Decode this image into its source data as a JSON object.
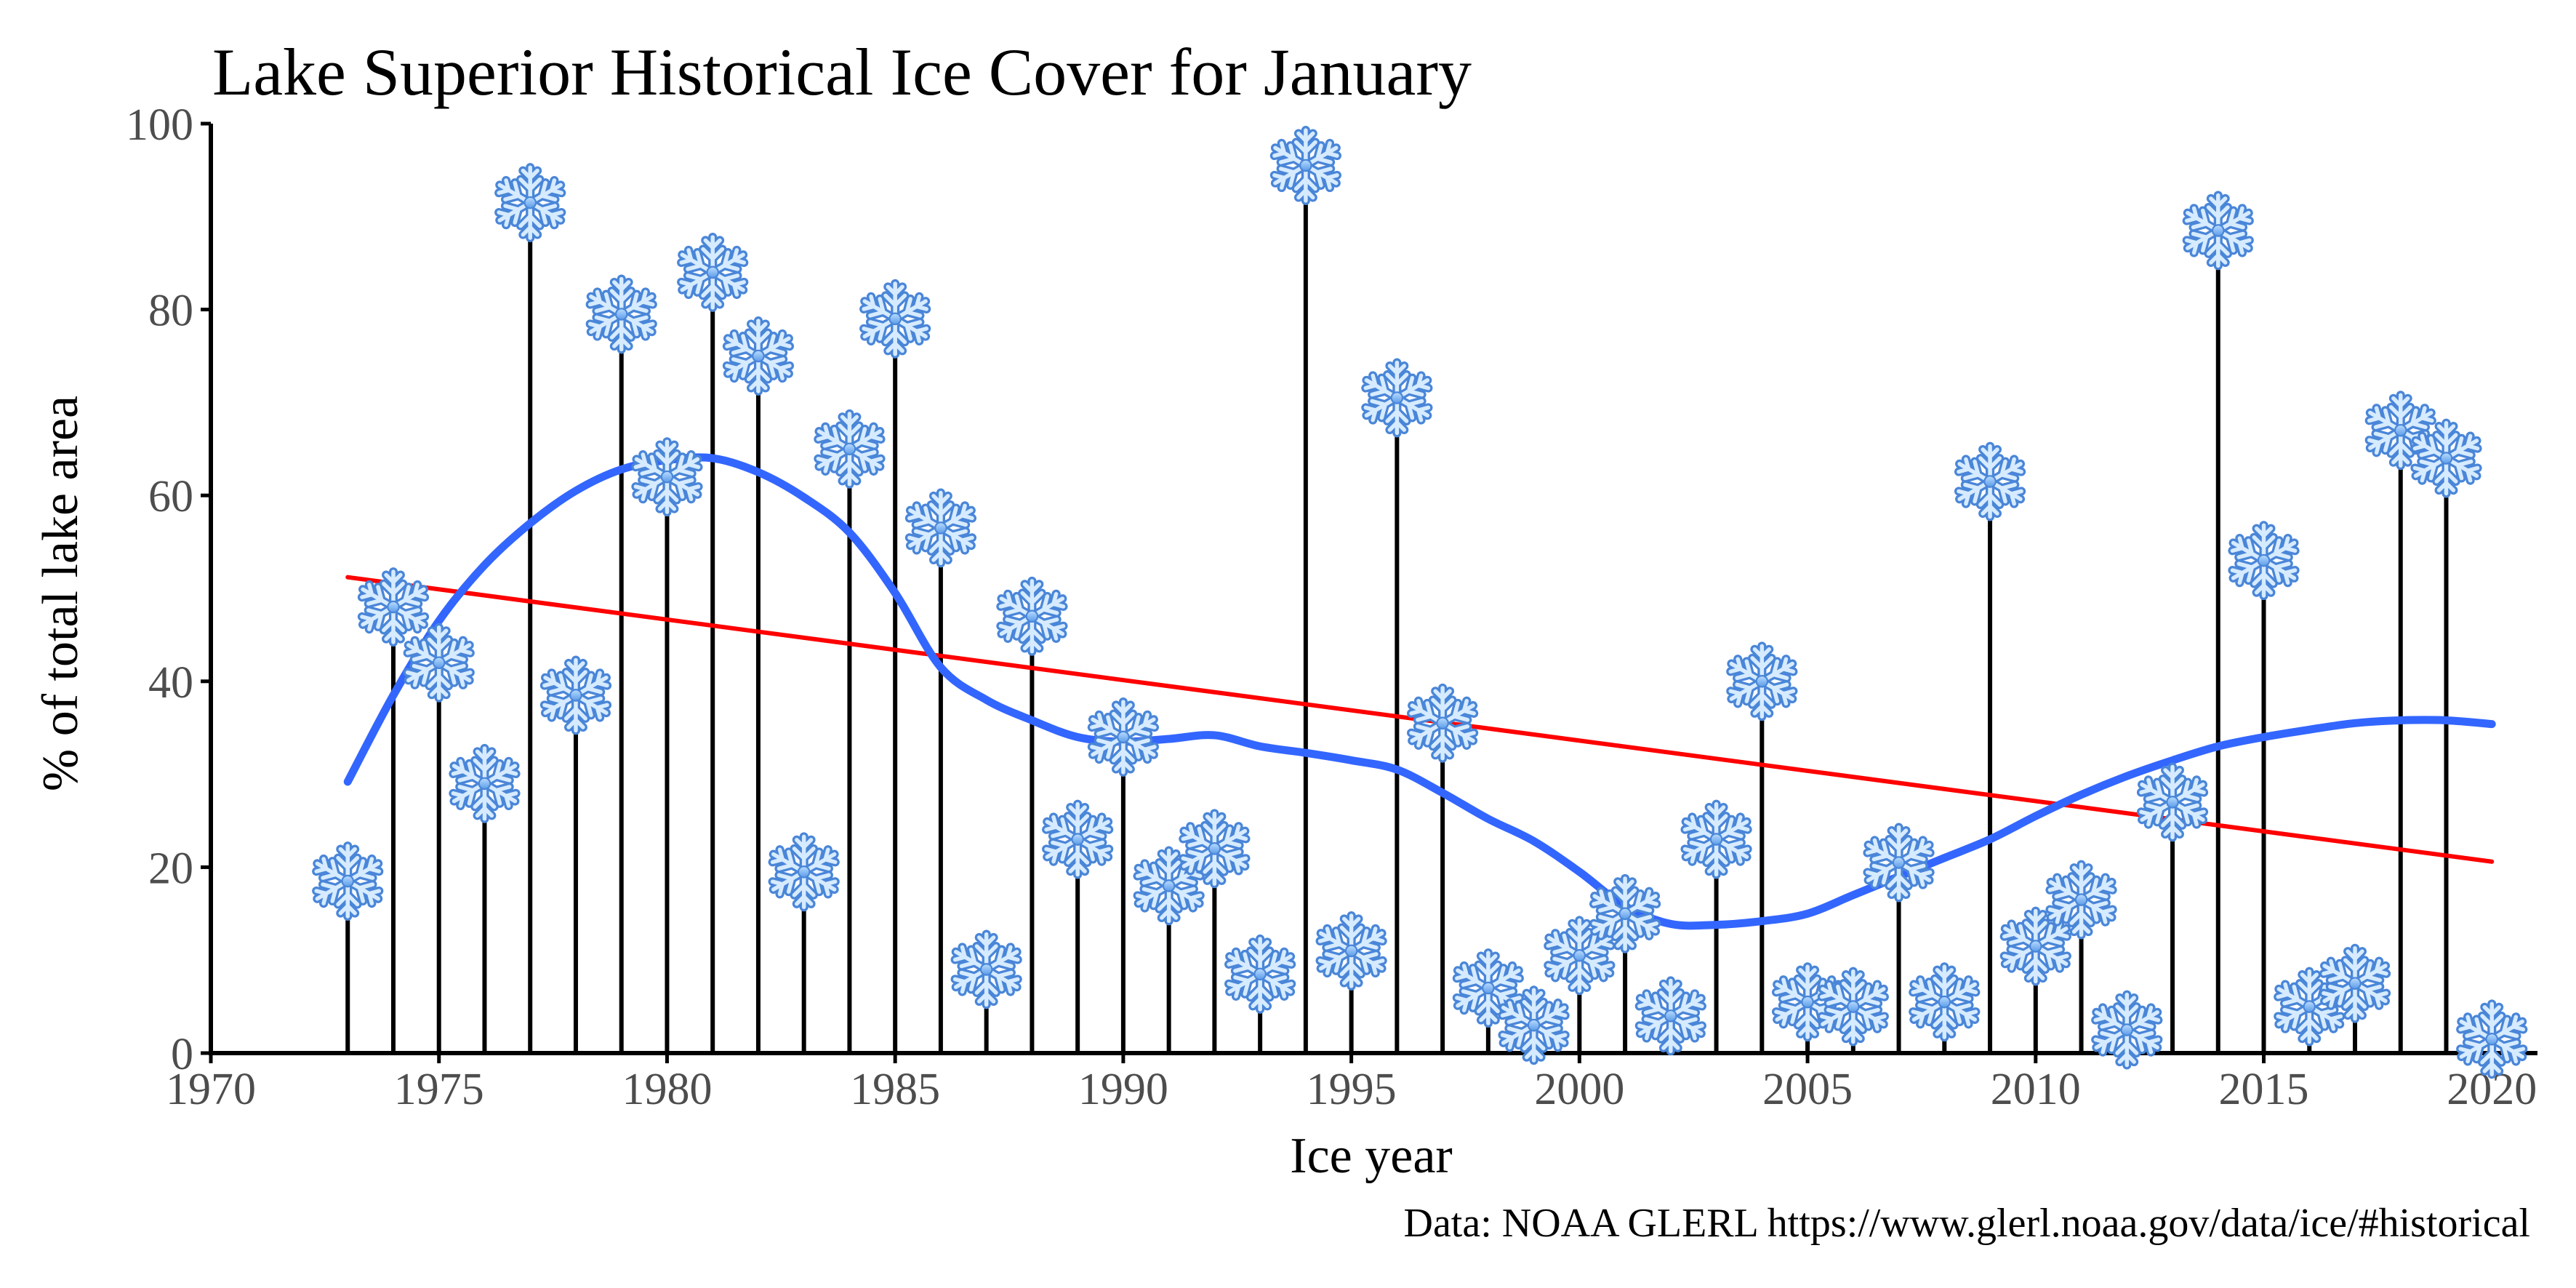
{
  "chart_data": {
    "type": "bar",
    "title": "Lake Superior Historical Ice Cover for January",
    "xlabel": "Ice year",
    "ylabel": "% of total lake area",
    "caption": "Data: NOAA GLERL https://www.glerl.noaa.gov/data/ice/#historical",
    "xlim": [
      1970,
      2021
    ],
    "ylim": [
      0,
      100
    ],
    "x_ticks": [
      1970,
      1975,
      1980,
      1985,
      1990,
      1995,
      2000,
      2005,
      2010,
      2015,
      2020
    ],
    "y_ticks": [
      0,
      20,
      40,
      60,
      80,
      100
    ],
    "x_tick_labels": [
      "1970",
      "1975",
      "1980",
      "1985",
      "1990",
      "1995",
      "2000",
      "2005",
      "2010",
      "2015",
      "2020"
    ],
    "y_tick_labels": [
      "0",
      "20",
      "40",
      "60",
      "80",
      "100"
    ],
    "marker_icon": "snowflake-icon",
    "grid": false,
    "series": [
      {
        "type": "lollipop",
        "color": "#000000",
        "x": [
          1973,
          1974,
          1975,
          1976,
          1977,
          1978,
          1979,
          1980,
          1981,
          1982,
          1983,
          1984,
          1985,
          1986,
          1987,
          1988,
          1989,
          1990,
          1991,
          1992,
          1993,
          1994,
          1995,
          1996,
          1997,
          1998,
          1999,
          2000,
          2001,
          2002,
          2003,
          2004,
          2005,
          2006,
          2007,
          2008,
          2009,
          2010,
          2011,
          2012,
          2013,
          2014,
          2015,
          2016,
          2017,
          2018,
          2019,
          2020
        ],
        "values": [
          18.5,
          48,
          42,
          29,
          91.5,
          38.5,
          79.5,
          62,
          84,
          75,
          19.5,
          65,
          79,
          56.5,
          9,
          47,
          23,
          34,
          18,
          22,
          8.5,
          95.5,
          11,
          70.5,
          35.5,
          7,
          3,
          10.5,
          15,
          4,
          23,
          40,
          5.5,
          5,
          20.5,
          5.5,
          61.5,
          11.5,
          16.5,
          2.5,
          27,
          88.5,
          53,
          5,
          7.5,
          67,
          64,
          1.5
        ]
      },
      {
        "type": "linear-trend",
        "color": "#ff0000",
        "x": [
          1973,
          2020
        ],
        "values": [
          51.2,
          20.6
        ]
      },
      {
        "type": "loess-smooth",
        "color": "#3366ff",
        "x": [
          1973,
          1974,
          1975,
          1976,
          1977,
          1978,
          1979,
          1980,
          1981,
          1982,
          1983,
          1984,
          1985,
          1986,
          1987,
          1988,
          1989,
          1990,
          1991,
          1992,
          1993,
          1994,
          1995,
          1996,
          1997,
          1998,
          1999,
          2000,
          2001,
          2002,
          2003,
          2004,
          2005,
          2006,
          2007,
          2008,
          2009,
          2010,
          2011,
          2012,
          2013,
          2014,
          2015,
          2016,
          2017,
          2018,
          2019,
          2020
        ],
        "values": [
          29.2,
          38.5,
          46.5,
          52.5,
          57,
          60.5,
          62.8,
          63.8,
          64,
          62.5,
          59.8,
          56,
          49.5,
          41.5,
          38,
          35.8,
          34,
          33.5,
          33.8,
          34.2,
          33,
          32.3,
          31.5,
          30.5,
          28,
          25.2,
          22.8,
          19.5,
          15.8,
          13.9,
          13.8,
          14.2,
          15,
          17,
          19,
          21,
          23,
          25.5,
          27.8,
          29.8,
          31.5,
          33,
          34,
          34.8,
          35.5,
          35.8,
          35.8,
          35.4
        ]
      }
    ]
  }
}
